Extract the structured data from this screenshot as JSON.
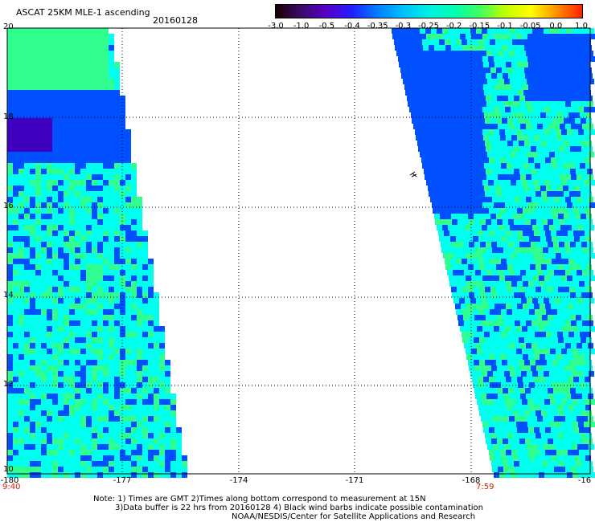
{
  "header": {
    "title": "ASCAT 25KM MLE-1 ascending",
    "date": "20160128"
  },
  "colorbar": {
    "ticks": [
      "-3.0",
      "-1.0",
      "-0.5",
      "-0.4",
      "-0.35",
      "-0.3",
      "-0.25",
      "-0.2",
      "-0.15",
      "-0.1",
      "-0.05",
      "0.0",
      "1.0"
    ],
    "colors": [
      "#1a0000",
      "#3a0a6a",
      "#5a00c8",
      "#2020ff",
      "#0080ff",
      "#00c0ff",
      "#00f0e0",
      "#00ffb0",
      "#40ff60",
      "#c0ff00",
      "#ffff00",
      "#ff9000",
      "#ff2000"
    ]
  },
  "axes": {
    "x_ticks": [
      "-180",
      "-177",
      "-174",
      "-171",
      "-168",
      "-16"
    ],
    "y_ticks": [
      "20",
      "18",
      "16",
      "14",
      "12",
      "10"
    ],
    "time_left": "9:40",
    "time_right": "7:59"
  },
  "notes": {
    "line1": "Note: 1) Times are GMT 2)Times along bottom correspond to measurement at 15N",
    "line2": "3)Data buffer is 22 hrs from 20160128 4) Black wind barbs indicate possible contamination",
    "line3": "NOAA/NESDIS/Center for Satellite Applications and Research"
  },
  "colors": {
    "cyan": "#00ffee",
    "blue": "#0050ff",
    "green": "#30ff90",
    "violet": "#4000c0"
  }
}
